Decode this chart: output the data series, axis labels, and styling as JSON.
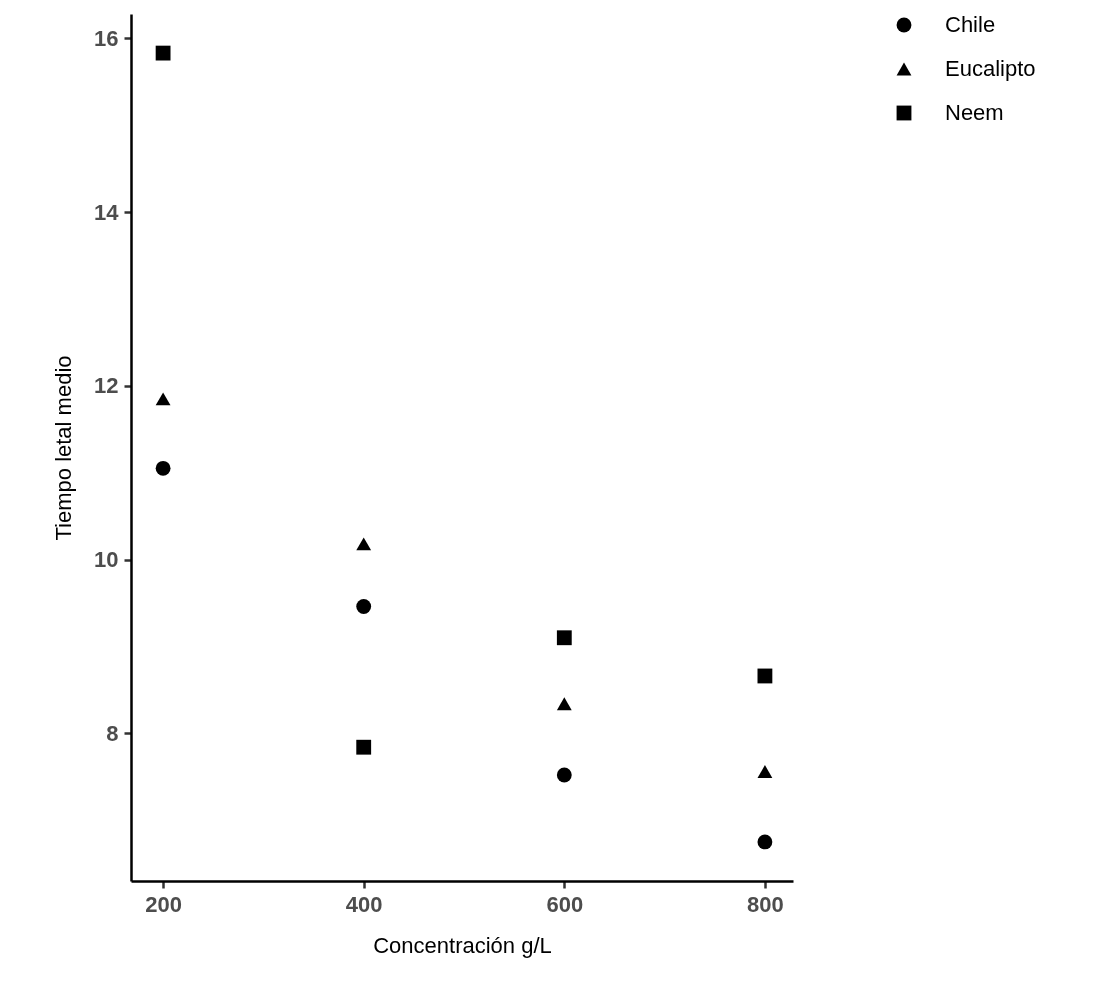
{
  "chart_data": {
    "type": "scatter",
    "xlabel": "Concentración g/L",
    "ylabel": "Tiempo letal medio",
    "x": [
      200,
      400,
      600,
      800
    ],
    "series": [
      {
        "name": "Chile",
        "color": "#000000",
        "marker": "circle",
        "values": [
          11.05,
          9.46,
          7.52,
          6.75
        ]
      },
      {
        "name": "Eucalipto",
        "color": "#000000",
        "marker": "triangle",
        "values": [
          11.85,
          10.18,
          8.34,
          7.56
        ]
      },
      {
        "name": "Neem",
        "color": "#000000",
        "marker": "square",
        "values": [
          15.83,
          7.84,
          9.1,
          8.66
        ]
      }
    ],
    "xlim": [
      168,
      828
    ],
    "xticks": [
      200,
      400,
      600,
      800
    ],
    "ylim": [
      6.3,
      16.28
    ],
    "yticks": [
      8,
      10,
      12,
      14,
      16
    ],
    "grid": false,
    "legend": "right"
  }
}
